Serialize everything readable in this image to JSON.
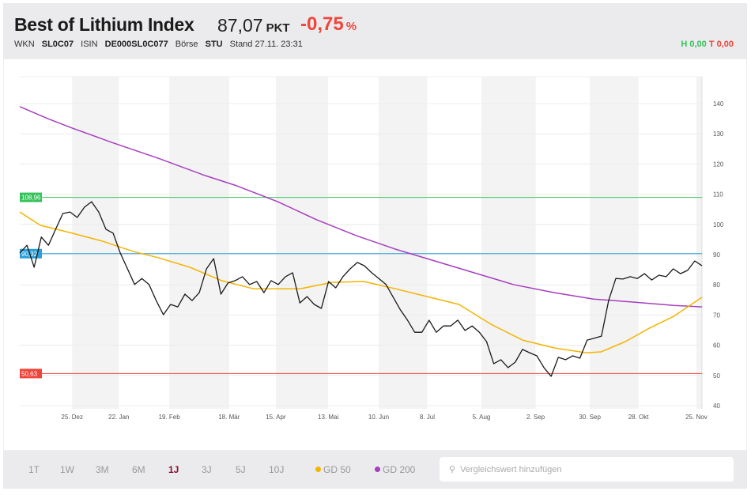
{
  "header": {
    "title": "Best of Lithium Index",
    "price": "87,07",
    "unit": "PKT",
    "change": "-0,75",
    "change_unit": "%",
    "wkn_label": "WKN",
    "wkn": "SL0C07",
    "isin_label": "ISIN",
    "isin": "DE000SL0C077",
    "boerse_label": "Börse",
    "boerse": "STU",
    "stand": "Stand 27.11. 23:31",
    "high": "H 0,00",
    "low": "T 0,00"
  },
  "footer": {
    "ranges": [
      "1T",
      "1W",
      "3M",
      "6M",
      "1J",
      "3J",
      "5J",
      "10J"
    ],
    "active_range": "1J",
    "legend": [
      {
        "label": "GD 50",
        "color": "#f5b400"
      },
      {
        "label": "GD 200",
        "color": "#a63fbf"
      }
    ],
    "search_placeholder": "Vergleichswert hinzufügen"
  },
  "chart_data": {
    "type": "line",
    "ylim": [
      40,
      140
    ],
    "yticks": [
      40,
      50,
      60,
      70,
      80,
      90,
      100,
      110,
      120,
      130,
      140
    ],
    "xlim": [
      0,
      365
    ],
    "xticks": [
      {
        "d": 28,
        "label": "25. Dez"
      },
      {
        "d": 53,
        "label": "22. Jan"
      },
      {
        "d": 80,
        "label": "19. Feb"
      },
      {
        "d": 112,
        "label": "18. Mär"
      },
      {
        "d": 137,
        "label": "15. Apr"
      },
      {
        "d": 165,
        "label": "13. Mai"
      },
      {
        "d": 192,
        "label": "10. Jun"
      },
      {
        "d": 218,
        "label": "8. Jul"
      },
      {
        "d": 247,
        "label": "5. Aug"
      },
      {
        "d": 276,
        "label": "2. Sep"
      },
      {
        "d": 305,
        "label": "30. Sep"
      },
      {
        "d": 331,
        "label": "28. Okt"
      },
      {
        "d": 362,
        "label": "25. Nov"
      }
    ],
    "levels": [
      {
        "value": 108.96,
        "label": "108,96",
        "color": "#35c35a"
      },
      {
        "value": 90.32,
        "label": "90,32",
        "color": "#2a9fd8"
      },
      {
        "value": 50.63,
        "label": "50,63",
        "color": "#f0453a"
      }
    ],
    "series": [
      {
        "name": "Kurs",
        "color": "#1a1a1a",
        "values": [
          90.5,
          93.1,
          85.8,
          95.8,
          93.1,
          98.4,
          103.6,
          104.1,
          102.3,
          105.7,
          107.5,
          104.1,
          98.4,
          97.1,
          90.5,
          85.3,
          80.1,
          82.1,
          80.1,
          74.8,
          70.1,
          73.5,
          72.7,
          76.9,
          74.8,
          77.4,
          85.3,
          88.7,
          76.9,
          80.6,
          81.4,
          82.7,
          80.1,
          81.1,
          77.4,
          81.4,
          80.1,
          82.7,
          84.0,
          74.0,
          76.1,
          73.5,
          72.2,
          81.1,
          79.0,
          82.7,
          85.3,
          87.4,
          86.3,
          84.0,
          82.1,
          80.1,
          75.9,
          71.7,
          68.3,
          64.3,
          64.3,
          68.3,
          64.3,
          66.4,
          66.4,
          68.3,
          64.9,
          66.4,
          64.3,
          61.2,
          53.9,
          55.2,
          52.6,
          54.4,
          58.6,
          57.5,
          56.5,
          52.6,
          49.7,
          56.0,
          55.2,
          56.5,
          55.7,
          61.7,
          62.3,
          63.0,
          74.8,
          82.1,
          81.9,
          82.7,
          82.1,
          83.7,
          81.6,
          83.2,
          82.7,
          85.3,
          83.7,
          84.8,
          87.9,
          86.3
        ]
      },
      {
        "name": "GD 50",
        "color": "#f5b400",
        "x": [
          0,
          11,
          28,
          44,
          61,
          74,
          91,
          108,
          125,
          150,
          167,
          184,
          201,
          218,
          235,
          252,
          269,
          286,
          303,
          311,
          324,
          337,
          350,
          365
        ],
        "values": [
          104.1,
          99.7,
          97.1,
          94.5,
          91.0,
          89.0,
          85.8,
          81.4,
          78.7,
          78.7,
          80.8,
          81.1,
          78.7,
          76.1,
          73.5,
          67.0,
          61.7,
          59.1,
          57.5,
          57.8,
          61.2,
          65.7,
          69.6,
          75.9
        ]
      },
      {
        "name": "GD 200",
        "color": "#a63fbf",
        "x": [
          0,
          15,
          28,
          49,
          74,
          99,
          116,
          138,
          159,
          180,
          201,
          222,
          243,
          264,
          286,
          307,
          328,
          350,
          365
        ],
        "values": [
          139.0,
          135.0,
          131.9,
          127.2,
          121.9,
          116.2,
          112.8,
          107.5,
          101.5,
          96.3,
          91.8,
          87.9,
          84.0,
          80.1,
          77.4,
          75.3,
          74.3,
          73.2,
          72.7
        ]
      }
    ]
  }
}
